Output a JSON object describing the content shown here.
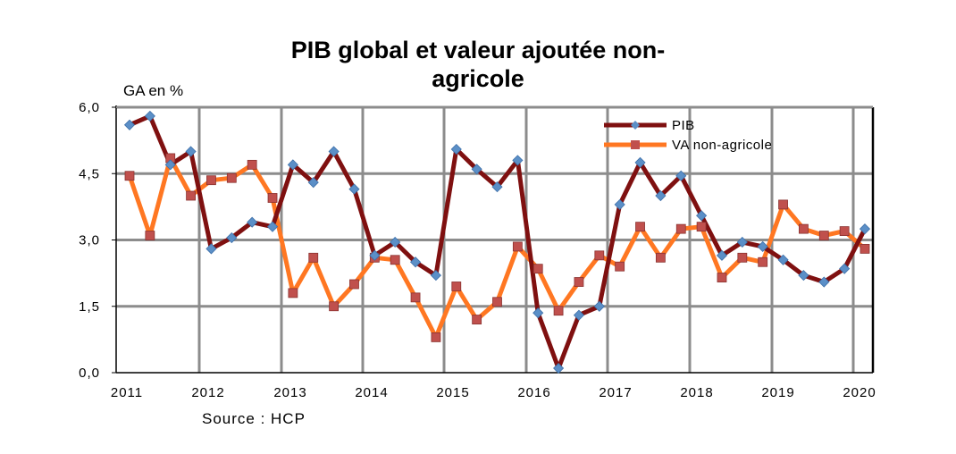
{
  "title_line1": "PIB global et valeur ajoutée non-",
  "title_line2": "agricole",
  "source": "Source : HCP",
  "chart_data": {
    "type": "line",
    "title": "PIB global et valeur ajoutée non-agricole",
    "ylabel": "GA en %",
    "xlabel": "",
    "ylim": [
      0,
      6
    ],
    "yticks": [
      0,
      1.5,
      3,
      4.5,
      6
    ],
    "ytick_labels": [
      "0,0",
      "1,5",
      "3,0",
      "4,5",
      "6,0"
    ],
    "x_labels": [
      "2011",
      "2012",
      "2013",
      "2014",
      "2015",
      "2016",
      "2017",
      "2018",
      "2019",
      "2020"
    ],
    "grid": true,
    "legend_position": "top-right",
    "series": [
      {
        "name": "PIB",
        "color": "#7f1010",
        "marker_color": "#5b8fc7",
        "values": [
          5.6,
          5.8,
          4.7,
          5.0,
          2.8,
          3.05,
          3.4,
          3.3,
          4.7,
          4.3,
          5.0,
          4.15,
          2.65,
          2.95,
          2.5,
          2.2,
          5.05,
          4.6,
          4.2,
          4.8,
          1.35,
          0.1,
          1.3,
          1.5,
          3.8,
          4.75,
          4.0,
          4.45,
          3.55,
          2.65,
          2.95,
          2.85,
          2.55,
          2.2,
          2.05,
          2.35,
          3.25
        ]
      },
      {
        "name": "VA non-agricole",
        "color": "#ff7722",
        "marker_color": "#c0504d",
        "values": [
          4.45,
          3.1,
          4.85,
          4.0,
          4.35,
          4.4,
          4.7,
          3.95,
          1.8,
          2.6,
          1.5,
          2.0,
          2.6,
          2.55,
          1.7,
          0.8,
          1.95,
          1.2,
          1.6,
          2.85,
          2.35,
          1.4,
          2.05,
          2.65,
          2.4,
          3.3,
          2.6,
          3.25,
          3.3,
          2.15,
          2.6,
          2.5,
          3.8,
          3.25,
          3.1,
          3.2,
          2.8
        ]
      }
    ]
  }
}
